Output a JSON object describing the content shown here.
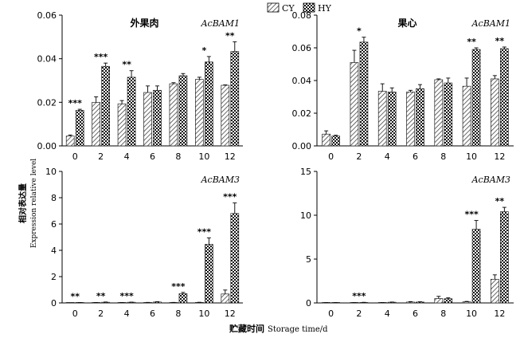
{
  "legend": {
    "cy_label": "CY",
    "hy_label": "HY"
  },
  "ylabel_cn": "相对表达量",
  "ylabel_en": "Expression relative level",
  "xlabel_cn": "贮藏时间",
  "xlabel_en": "Storage time/d",
  "chart_data": [
    {
      "type": "bar",
      "title": "外果肉",
      "gene": "AcBAM1",
      "categories": [
        "0",
        "2",
        "4",
        "6",
        "8",
        "10",
        "12"
      ],
      "ylim": [
        0,
        0.06
      ],
      "yticks": [
        "0.00",
        "0.02",
        "0.04",
        "0.06"
      ],
      "series": [
        {
          "name": "CY",
          "values": [
            0.0045,
            0.02,
            0.0193,
            0.0245,
            0.0285,
            0.0305,
            0.0278
          ],
          "errors": [
            0.0005,
            0.0025,
            0.0015,
            0.003,
            0.0005,
            0.001,
            0.0002
          ]
        },
        {
          "name": "HY",
          "values": [
            0.0163,
            0.0365,
            0.0315,
            0.0255,
            0.0322,
            0.0385,
            0.0433
          ],
          "errors": [
            0.0005,
            0.0015,
            0.003,
            0.002,
            0.001,
            0.0025,
            0.0045
          ]
        }
      ],
      "significance": [
        "***",
        "***",
        "**",
        "",
        "",
        "*",
        "**"
      ]
    },
    {
      "type": "bar",
      "title": "果心",
      "gene": "AcBAM1",
      "categories": [
        "0",
        "2",
        "4",
        "6",
        "8",
        "10",
        "12"
      ],
      "ylim": [
        0,
        0.08
      ],
      "yticks": [
        "0.00",
        "0.02",
        "0.04",
        "0.06",
        "0.08"
      ],
      "series": [
        {
          "name": "CY",
          "values": [
            0.0072,
            0.051,
            0.0335,
            0.033,
            0.0405,
            0.0365,
            0.041
          ],
          "errors": [
            0.002,
            0.0075,
            0.0045,
            0.001,
            0.0005,
            0.005,
            0.002
          ]
        },
        {
          "name": "HY",
          "values": [
            0.006,
            0.0635,
            0.033,
            0.035,
            0.0385,
            0.059,
            0.0595
          ],
          "errors": [
            0.0005,
            0.003,
            0.0025,
            0.0025,
            0.003,
            0.001,
            0.001
          ]
        }
      ],
      "significance": [
        "",
        "*",
        "",
        "",
        "",
        "**",
        "**"
      ]
    },
    {
      "type": "bar",
      "title": "",
      "gene": "AcBAM3",
      "categories": [
        "0",
        "2",
        "4",
        "6",
        "8",
        "10",
        "12"
      ],
      "ylim": [
        0,
        10
      ],
      "yticks": [
        "0",
        "2",
        "4",
        "6",
        "8",
        "10"
      ],
      "series": [
        {
          "name": "CY",
          "values": [
            0.01,
            0.02,
            0.02,
            0.03,
            0.03,
            0.04,
            0.68
          ],
          "errors": [
            0.0,
            0.01,
            0.01,
            0.01,
            0.01,
            0.01,
            0.3
          ]
        },
        {
          "name": "HY",
          "values": [
            0.02,
            0.05,
            0.05,
            0.07,
            0.7,
            4.45,
            6.8
          ],
          "errors": [
            0.01,
            0.02,
            0.01,
            0.02,
            0.1,
            0.5,
            0.8
          ]
        }
      ],
      "significance": [
        "**",
        "**",
        "***",
        "",
        "***",
        "***",
        "***"
      ]
    },
    {
      "type": "bar",
      "title": "",
      "gene": "AcBAM3",
      "categories": [
        "0",
        "2",
        "4",
        "6",
        "8",
        "10",
        "12"
      ],
      "ylim": [
        0,
        15
      ],
      "yticks": [
        "0",
        "5",
        "10",
        "15"
      ],
      "series": [
        {
          "name": "CY",
          "values": [
            0.02,
            0.02,
            0.03,
            0.1,
            0.5,
            0.12,
            2.7
          ],
          "errors": [
            0.01,
            0.01,
            0.01,
            0.05,
            0.25,
            0.05,
            0.5
          ]
        },
        {
          "name": "HY",
          "values": [
            0.02,
            0.05,
            0.08,
            0.1,
            0.48,
            8.4,
            10.4
          ],
          "errors": [
            0.01,
            0.02,
            0.02,
            0.03,
            0.1,
            1.0,
            0.5
          ]
        }
      ],
      "significance": [
        "",
        "***",
        "",
        "",
        "",
        "***",
        "**"
      ]
    }
  ]
}
